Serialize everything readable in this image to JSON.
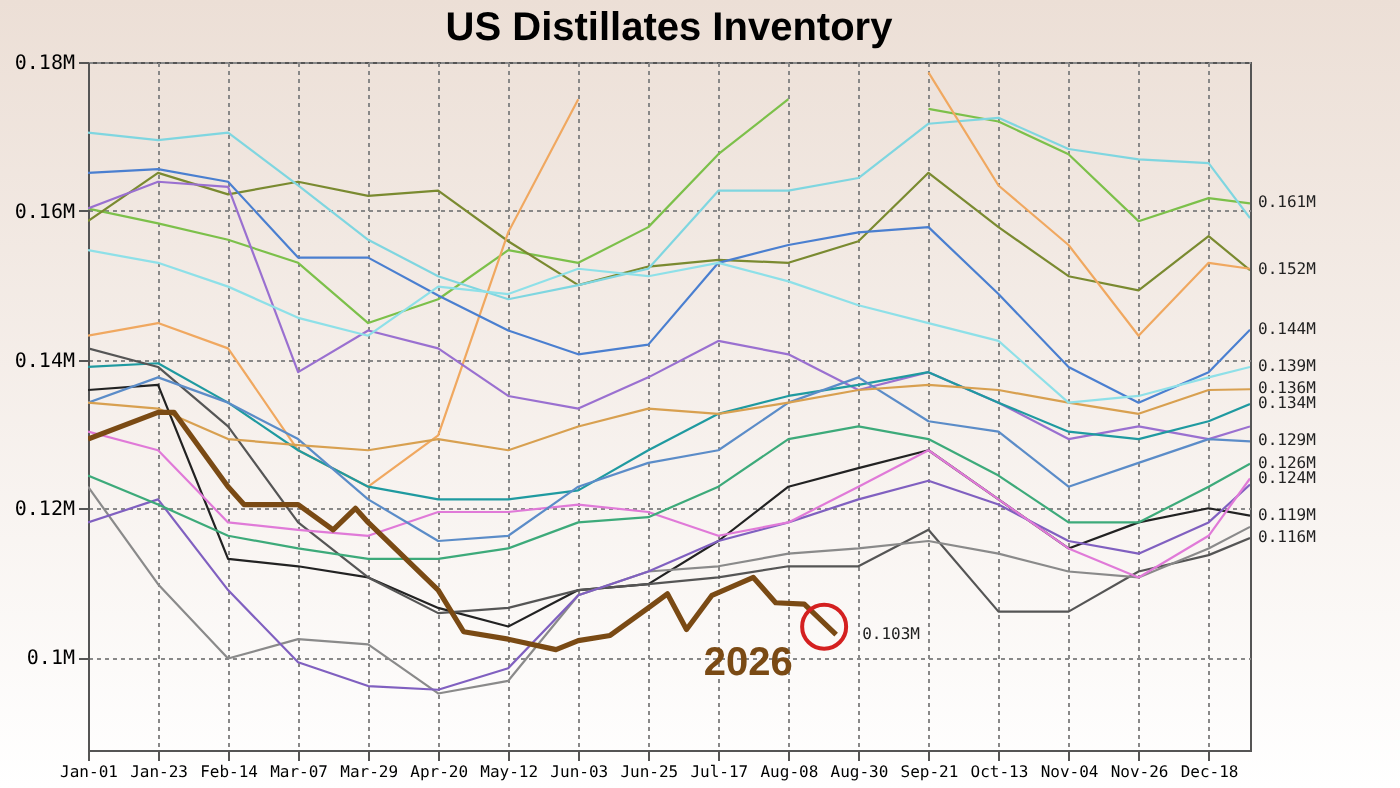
{
  "chart_data": {
    "type": "line",
    "title": "US Distillates Inventory",
    "x": [
      "--01-01",
      "--01-23",
      "--02-14",
      "--03-07",
      "--03-29",
      "--04-20",
      "--05-12",
      "--06-03",
      "--06-25",
      "--07-17",
      "--08-08",
      "--08-30",
      "--09-21",
      "--10-13",
      "--11-04",
      "--11-26",
      "--12-18",
      "--12-31"
    ],
    "xlim": [
      "--01-01",
      "--12-31"
    ],
    "xticks": [
      {
        "value": "--01-01",
        "label": "Jan-01"
      },
      {
        "value": "--01-23",
        "label": "Jan-23"
      },
      {
        "value": "--02-14",
        "label": "Feb-14"
      },
      {
        "value": "--03-07",
        "label": "Mar-07"
      },
      {
        "value": "--03-29",
        "label": "Mar-29"
      },
      {
        "value": "--04-20",
        "label": "Apr-20"
      },
      {
        "value": "--05-12",
        "label": "May-12"
      },
      {
        "value": "--06-03",
        "label": "Jun-03"
      },
      {
        "value": "--06-25",
        "label": "Jun-25"
      },
      {
        "value": "--07-17",
        "label": "Jul-17"
      },
      {
        "value": "--08-08",
        "label": "Aug-08"
      },
      {
        "value": "--08-30",
        "label": "Aug-30"
      },
      {
        "value": "--09-21",
        "label": "Sep-21"
      },
      {
        "value": "--10-13",
        "label": "Oct-13"
      },
      {
        "value": "--11-04",
        "label": "Nov-04"
      },
      {
        "value": "--11-26",
        "label": "Nov-26"
      },
      {
        "value": "--12-18",
        "label": "Dec-18"
      }
    ],
    "ylim": [
      0.0875,
      0.18
    ],
    "yticks": [
      {
        "value": 0.1,
        "label": "0.1M"
      },
      {
        "value": 0.12,
        "label": "0.12M"
      },
      {
        "value": 0.14,
        "label": "0.14M"
      },
      {
        "value": 0.16,
        "label": "0.16M"
      },
      {
        "value": 0.18,
        "label": "0.18M"
      }
    ],
    "grid": true,
    "series": [
      {
        "color": "#7cc04a",
        "values": [
          0.1603,
          0.1583,
          0.1561,
          0.153,
          0.1449,
          0.1481,
          0.1547,
          0.153,
          0.1578,
          0.1676,
          0.175,
          null,
          0.1737,
          0.172,
          0.1676,
          0.1586,
          0.1617,
          0.161
        ],
        "value_labels": [
          null,
          null,
          null,
          null,
          null,
          null,
          null,
          null,
          null,
          null,
          null,
          null,
          null,
          null,
          null,
          null,
          null,
          "0.161M"
        ]
      },
      {
        "color": "#7a8a30",
        "values": [
          0.1586,
          0.1651,
          0.1622,
          0.1639,
          0.162,
          0.1627,
          0.1559,
          0.15,
          0.1525,
          0.1534,
          0.153,
          0.1559,
          0.1651,
          0.1578,
          0.1512,
          0.1493,
          0.1566,
          0.152
        ],
        "value_labels": [
          null,
          null,
          null,
          null,
          null,
          null,
          null,
          null,
          null,
          null,
          null,
          null,
          null,
          null,
          null,
          null,
          null,
          "0.152M"
        ]
      },
      {
        "color": "#7fd6e0",
        "values": [
          0.1705,
          0.1695,
          0.1705,
          0.1634,
          0.1561,
          0.1512,
          0.1481,
          0.15,
          0.1522,
          0.1627,
          0.1627,
          0.1644,
          0.1717,
          0.1725,
          0.1683,
          0.1669,
          0.1664,
          0.159
        ]
      },
      {
        "color": "#f0a860",
        "values": [
          0.1432,
          0.1449,
          0.1415,
          0.1278,
          0.1229,
          0.1298,
          0.1571,
          0.175,
          null,
          null,
          null,
          null,
          0.1786,
          0.1634,
          0.1554,
          0.1432,
          0.153,
          0.1522
        ]
      },
      {
        "color": "#4a7fd0",
        "values": [
          0.1651,
          0.1656,
          0.1639,
          0.1537,
          0.1537,
          0.1486,
          0.1439,
          0.1407,
          0.142,
          0.153,
          0.1554,
          0.1571,
          0.1578,
          0.1488,
          0.139,
          0.1342,
          0.1383,
          0.144
        ],
        "value_labels": [
          null,
          null,
          null,
          null,
          null,
          null,
          null,
          null,
          null,
          null,
          null,
          null,
          null,
          null,
          null,
          null,
          null,
          "0.144M"
        ]
      },
      {
        "color": "#9a70d0",
        "values": [
          0.1603,
          0.1639,
          0.1632,
          0.1383,
          0.1439,
          0.1415,
          0.1351,
          0.1334,
          0.1376,
          0.1425,
          0.1407,
          0.1359,
          0.1383,
          0.1342,
          0.1293,
          0.131,
          0.1293,
          0.131
        ]
      },
      {
        "color": "#1f9aa0",
        "values": [
          0.139,
          0.1395,
          0.1342,
          0.1278,
          0.1229,
          0.1212,
          0.1212,
          0.1224,
          0.1278,
          0.1327,
          0.1351,
          0.1366,
          0.1383,
          0.1342,
          0.1303,
          0.1293,
          0.1317,
          0.134
        ],
        "value_labels": [
          null,
          null,
          null,
          null,
          null,
          null,
          null,
          null,
          null,
          null,
          null,
          null,
          null,
          null,
          null,
          null,
          null,
          "0.134M"
        ]
      },
      {
        "color": "#222222",
        "values": [
          0.1359,
          0.1366,
          0.1132,
          0.1122,
          0.1107,
          0.1066,
          0.1041,
          0.109,
          0.1098,
          0.1156,
          0.1229,
          0.1254,
          0.1278,
          0.1212,
          0.1146,
          0.1181,
          0.12,
          0.119
        ],
        "value_labels": [
          null,
          null,
          null,
          null,
          null,
          null,
          null,
          null,
          null,
          null,
          null,
          null,
          null,
          null,
          null,
          null,
          null,
          "0.119M"
        ]
      },
      {
        "color": "#555555",
        "values": [
          0.1415,
          0.139,
          0.131,
          0.1181,
          0.1107,
          0.1059,
          0.1066,
          0.109,
          0.1098,
          0.1107,
          0.1122,
          0.1122,
          0.1171,
          0.1061,
          0.1061,
          0.1115,
          0.1137,
          0.116
        ],
        "value_labels": [
          null,
          null,
          null,
          null,
          null,
          null,
          null,
          null,
          null,
          null,
          null,
          null,
          null,
          null,
          null,
          null,
          null,
          "0.116M"
        ]
      },
      {
        "color": "#8a8a8a",
        "values": [
          0.1229,
          0.1098,
          0.0998,
          0.1024,
          0.1017,
          0.0951,
          0.0968,
          0.1083,
          0.1115,
          0.1122,
          0.1139,
          0.1146,
          0.1156,
          0.1139,
          0.1115,
          0.1107,
          0.1146,
          0.1175
        ]
      },
      {
        "color": "#8060c0",
        "values": [
          0.1181,
          0.1212,
          0.109,
          0.0993,
          0.0961,
          0.0956,
          0.0985,
          0.1083,
          0.1115,
          0.1156,
          0.1181,
          0.1212,
          0.1237,
          0.1205,
          0.1156,
          0.1139,
          0.1181,
          0.1232
        ]
      },
      {
        "color": "#e07ad8",
        "values": [
          0.1303,
          0.1278,
          0.1181,
          0.1171,
          0.1163,
          0.1195,
          0.1195,
          0.1205,
          0.1195,
          0.1163,
          0.1181,
          0.1229,
          0.1278,
          0.1212,
          0.1146,
          0.1107,
          0.1163,
          0.124
        ],
        "value_labels": [
          null,
          null,
          null,
          null,
          null,
          null,
          null,
          null,
          null,
          null,
          null,
          null,
          null,
          null,
          null,
          null,
          null,
          "0.124M"
        ]
      },
      {
        "color": "#3daa7a",
        "values": [
          0.1244,
          0.1205,
          0.1163,
          0.1146,
          0.1132,
          0.1132,
          0.1146,
          0.1181,
          0.1188,
          0.1229,
          0.1293,
          0.131,
          0.1293,
          0.1244,
          0.1181,
          0.1181,
          0.1229,
          0.126
        ],
        "value_labels": [
          null,
          null,
          null,
          null,
          null,
          null,
          null,
          null,
          null,
          null,
          null,
          null,
          null,
          null,
          null,
          null,
          null,
          "0.126M"
        ]
      },
      {
        "color": "#5b8cc8",
        "values": [
          0.1342,
          0.1376,
          0.1342,
          0.1293,
          0.1212,
          0.1156,
          0.1163,
          0.1229,
          0.1261,
          0.1278,
          0.1342,
          0.1376,
          0.1317,
          0.1303,
          0.1229,
          0.1261,
          0.1293,
          0.129
        ],
        "value_labels": [
          null,
          null,
          null,
          null,
          null,
          null,
          null,
          null,
          null,
          null,
          null,
          null,
          null,
          null,
          null,
          null,
          null,
          "0.129M"
        ]
      },
      {
        "color": "#d8a050",
        "values": [
          0.1342,
          0.1334,
          0.1293,
          0.1285,
          0.1278,
          0.1293,
          0.1278,
          0.131,
          0.1334,
          0.1327,
          0.1342,
          0.1359,
          0.1366,
          0.1359,
          0.1342,
          0.1327,
          0.1359,
          0.136
        ],
        "value_labels": [
          null,
          null,
          null,
          null,
          null,
          null,
          null,
          null,
          null,
          null,
          null,
          null,
          null,
          null,
          null,
          null,
          null,
          "0.136M"
        ]
      },
      {
        "color": "#8ee0e8",
        "values": [
          0.1547,
          0.153,
          0.1498,
          0.1456,
          0.1432,
          0.1498,
          0.1488,
          0.1522,
          0.1512,
          0.153,
          0.1505,
          0.1473,
          0.1449,
          0.1425,
          0.1342,
          0.1351,
          0.1376,
          0.139
        ],
        "value_labels": [
          null,
          null,
          null,
          null,
          null,
          null,
          null,
          null,
          null,
          null,
          null,
          null,
          null,
          null,
          null,
          null,
          null,
          "0.139M"
        ]
      },
      {
        "name": "2026",
        "color": "#7a4a14",
        "x": [
          "--01-01",
          "--01-23",
          "--01-28",
          "--02-14",
          "--02-19",
          "--03-07",
          "--03-18",
          "--03-25",
          "--03-29",
          "--04-20",
          "--04-28",
          "--05-12",
          "--05-27",
          "--06-03",
          "--06-13",
          "--06-25",
          "--07-01",
          "--07-07",
          "--07-15",
          "--07-28",
          "--08-04",
          "--08-13",
          "--08-23"
        ],
        "values": [
          0.1293,
          0.1329,
          0.1329,
          0.1229,
          0.1205,
          0.1205,
          0.1171,
          0.12,
          0.1181,
          0.109,
          0.1034,
          0.1024,
          0.101,
          0.1022,
          0.1029,
          0.1066,
          0.1085,
          0.1037,
          0.1083,
          0.1107,
          0.1073,
          0.1071,
          0.103
        ],
        "value_labels": [
          null,
          null,
          null,
          null,
          null,
          null,
          null,
          null,
          null,
          null,
          null,
          null,
          null,
          null,
          null,
          null,
          null,
          null,
          null,
          null,
          null,
          null,
          "0.103M"
        ]
      }
    ]
  }
}
